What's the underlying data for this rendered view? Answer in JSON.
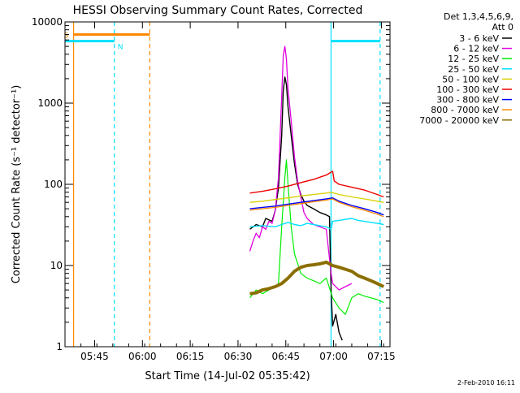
{
  "chart_data": {
    "type": "line",
    "title": "HESSI Observing Summary Count Rates, Corrected",
    "xlabel": "Start Time (14-Jul-02 05:35:42)",
    "ylabel": "Corrected Count Rate (s⁻¹ detector⁻¹)",
    "x_unit": "minutes after 05:35:42 UT",
    "xlim": [
      0,
      102
    ],
    "ylim": [
      1,
      10000
    ],
    "yscale": "log",
    "x_ticks": [
      {
        "label": "05:45",
        "value": 9.3
      },
      {
        "label": "06:00",
        "value": 24.3
      },
      {
        "label": "06:15",
        "value": 39.3
      },
      {
        "label": "06:30",
        "value": 54.3
      },
      {
        "label": "06:45",
        "value": 69.3
      },
      {
        "label": "07:00",
        "value": 84.3
      },
      {
        "label": "07:15",
        "value": 99.3
      }
    ],
    "y_ticks": [
      {
        "label": "1",
        "value": 1
      },
      {
        "label": "10",
        "value": 10
      },
      {
        "label": "100",
        "value": 100
      },
      {
        "label": "1000",
        "value": 1000
      },
      {
        "label": "10000",
        "value": 10000
      }
    ],
    "legend": {
      "placement": "right",
      "header_lines": [
        "Det 1,3,4,5,6,9,",
        "Att 0"
      ],
      "entries": [
        {
          "label": "3 - 6 keV",
          "color": "#000000"
        },
        {
          "label": "6 - 12 keV",
          "color": "#e000e0"
        },
        {
          "label": "12 - 25 keV",
          "color": "#00ee00"
        },
        {
          "label": "25 - 50 keV",
          "color": "#00e0ff"
        },
        {
          "label": "50 - 100 keV",
          "color": "#d8d000"
        },
        {
          "label": "100 - 300 keV",
          "color": "#ee0000"
        },
        {
          "label": "300 - 800 keV",
          "color": "#0000ff"
        },
        {
          "label": "800 - 7000 keV",
          "color": "#ff8800"
        },
        {
          "label": "7000 - 20000 keV",
          "color": "#8b6e00"
        }
      ]
    },
    "series": [
      {
        "name": "3 - 6 keV",
        "color": "#000000",
        "width": 1.4,
        "x": [
          58,
          60,
          62,
          63,
          65,
          66,
          67,
          68,
          68.5,
          69,
          69.5,
          70,
          71,
          72,
          73,
          74,
          75,
          76,
          78,
          80,
          82,
          83,
          83.5,
          84,
          85,
          86,
          87
        ],
        "y": [
          28,
          32,
          30,
          38,
          35,
          48,
          90,
          400,
          1400,
          2100,
          1700,
          900,
          400,
          180,
          100,
          75,
          62,
          55,
          50,
          45,
          42,
          40,
          5,
          1.8,
          2.5,
          1.5,
          1.2
        ]
      },
      {
        "name": "6 - 12 keV",
        "color": "#e000e0",
        "width": 1.3,
        "x": [
          58,
          59,
          60,
          61,
          62,
          63,
          64,
          65,
          66,
          67,
          68,
          68.5,
          69,
          69.5,
          70,
          71,
          72,
          73,
          74,
          75,
          76,
          78,
          80,
          82,
          83.5,
          84,
          86,
          88,
          90
        ],
        "y": [
          15,
          20,
          25,
          22,
          30,
          28,
          35,
          33,
          48,
          120,
          1200,
          3800,
          5000,
          3500,
          1500,
          600,
          220,
          110,
          70,
          45,
          38,
          32,
          30,
          28,
          8,
          6,
          5,
          5.5,
          6
        ]
      },
      {
        "name": "12 - 25 keV",
        "color": "#00ee00",
        "width": 1.2,
        "x": [
          58,
          60,
          62,
          64,
          66,
          67,
          68,
          69,
          69.5,
          70,
          71,
          72,
          74,
          76,
          78,
          80,
          82,
          84,
          86,
          88,
          90,
          92,
          94,
          96,
          98,
          100
        ],
        "y": [
          4,
          5,
          4.5,
          5,
          5.5,
          6,
          30,
          120,
          200,
          100,
          30,
          14,
          8,
          7,
          6.5,
          6,
          7,
          4,
          3,
          2.5,
          4,
          4.5,
          4.2,
          4,
          3.8,
          3.5
        ]
      },
      {
        "name": "25 - 50 keV",
        "color": "#00e0ff",
        "width": 1.4,
        "x": [
          58,
          62,
          66,
          68,
          70,
          72,
          74,
          76,
          78,
          80,
          82,
          83.5,
          84,
          86,
          88,
          90,
          92,
          94,
          96,
          98,
          100
        ],
        "y": [
          30,
          31,
          30,
          32,
          34,
          32,
          31,
          33,
          32,
          31,
          30,
          28,
          35,
          36,
          37,
          38,
          36,
          35,
          34,
          33,
          32
        ]
      },
      {
        "name": "50 - 100 keV",
        "color": "#d8d000",
        "width": 1.3,
        "x": [
          58,
          62,
          66,
          70,
          74,
          78,
          82,
          83.5,
          86,
          90,
          94,
          98,
          100
        ],
        "y": [
          60,
          62,
          65,
          68,
          72,
          75,
          78,
          80,
          75,
          70,
          66,
          62,
          60
        ]
      },
      {
        "name": "100 - 300 keV",
        "color": "#ee0000",
        "width": 1.4,
        "x": [
          58,
          62,
          66,
          70,
          74,
          78,
          82,
          84,
          84.5,
          86,
          90,
          94,
          98,
          100
        ],
        "y": [
          78,
          82,
          88,
          95,
          105,
          115,
          130,
          145,
          110,
          100,
          92,
          85,
          75,
          70
        ]
      },
      {
        "name": "300 - 800 keV",
        "color": "#0000ff",
        "width": 1.4,
        "x": [
          58,
          62,
          66,
          70,
          74,
          78,
          82,
          84,
          86,
          90,
          94,
          98,
          100
        ],
        "y": [
          50,
          52,
          54,
          57,
          60,
          63,
          66,
          68,
          62,
          55,
          50,
          45,
          42
        ]
      },
      {
        "name": "800 - 7000 keV",
        "color": "#ff8800",
        "width": 1.3,
        "x": [
          58,
          62,
          66,
          70,
          74,
          78,
          82,
          84,
          86,
          90,
          94,
          98,
          100
        ],
        "y": [
          48,
          50,
          52,
          55,
          58,
          61,
          64,
          66,
          60,
          53,
          48,
          43,
          40
        ]
      },
      {
        "name": "7000 - 20000 keV",
        "color": "#8b6e00",
        "width": 4,
        "x": [
          58,
          60,
          62,
          64,
          66,
          68,
          70,
          72,
          74,
          76,
          78,
          80,
          82,
          84,
          86,
          88,
          90,
          92,
          94,
          96,
          98,
          100
        ],
        "y": [
          4.5,
          4.6,
          5,
          5.2,
          5.5,
          6,
          7,
          8.5,
          9.5,
          10,
          10.2,
          10.5,
          11,
          10,
          9.5,
          9,
          8.5,
          7.5,
          7,
          6.5,
          6,
          5.5
        ]
      }
    ],
    "vertical_lines": [
      {
        "x": 2.7,
        "color": "#ff8800",
        "style": "solid"
      },
      {
        "x": 15.5,
        "color": "#00e0ff",
        "style": "dashed"
      },
      {
        "x": 26.6,
        "color": "#ff8800",
        "style": "dashed"
      },
      {
        "x": 83.5,
        "color": "#00e0ff",
        "style": "solid"
      },
      {
        "x": 98.9,
        "color": "#00e0ff",
        "style": "dashed"
      }
    ],
    "flag_bars": [
      {
        "label": "S",
        "x_start": 2.7,
        "x_end": 26.6,
        "y": 7000,
        "color": "#ff8800"
      },
      {
        "label": "N",
        "x_start": 0,
        "x_end": 15.5,
        "y": 5800,
        "color": "#00e0ff"
      },
      {
        "label": "",
        "x_start": 83.5,
        "x_end": 98.9,
        "y": 5800,
        "color": "#00e0ff"
      }
    ],
    "footer": "2-Feb-2010 16:11"
  }
}
